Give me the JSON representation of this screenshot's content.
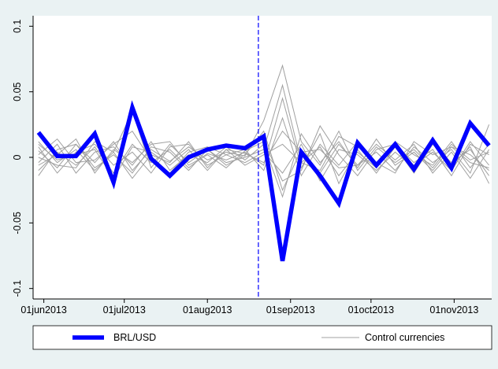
{
  "chart_data": {
    "type": "line",
    "x": [
      "2013-05-30",
      "2013-06-06",
      "2013-06-13",
      "2013-06-20",
      "2013-06-27",
      "2013-07-04",
      "2013-07-11",
      "2013-07-18",
      "2013-07-25",
      "2013-08-01",
      "2013-08-08",
      "2013-08-15",
      "2013-08-22",
      "2013-08-29",
      "2013-09-05",
      "2013-09-12",
      "2013-09-19",
      "2013-09-26",
      "2013-10-03",
      "2013-10-10",
      "2013-10-17",
      "2013-10-24",
      "2013-10-31",
      "2013-11-07",
      "2013-11-14"
    ],
    "series": [
      {
        "name": "BRL/USD",
        "color": "#0000ff",
        "values": [
          0.019,
          0.001,
          0.001,
          0.018,
          -0.019,
          0.038,
          -0.001,
          -0.014,
          0.0,
          0.006,
          0.009,
          0.007,
          0.016,
          -0.079,
          0.004,
          -0.014,
          -0.035,
          0.011,
          -0.006,
          0.01,
          -0.009,
          0.013,
          -0.008,
          0.026,
          0.009
        ]
      },
      {
        "name": "Control currencies",
        "color": "#a0a0a0",
        "values": [
          [
            0.005,
            -0.008,
            0.01,
            -0.004,
            0.012,
            -0.01,
            0.006,
            -0.003,
            0.008,
            -0.002,
            0.004,
            0.001,
            0.028,
            0.07,
            0.012,
            -0.006,
            0.02,
            -0.01,
            0.008,
            -0.004,
            0.006,
            -0.008,
            0.01,
            -0.002,
            0.004
          ],
          [
            -0.01,
            0.004,
            -0.006,
            0.008,
            -0.012,
            0.01,
            -0.004,
            0.006,
            -0.008,
            0.003,
            -0.002,
            0.004,
            -0.006,
            0.045,
            -0.008,
            0.018,
            -0.02,
            0.006,
            -0.012,
            0.008,
            -0.006,
            0.004,
            -0.01,
            0.012,
            -0.006
          ],
          [
            0.012,
            -0.004,
            0.006,
            -0.01,
            0.004,
            0.035,
            -0.008,
            0.01,
            -0.004,
            0.006,
            -0.006,
            0.002,
            0.02,
            -0.025,
            0.006,
            -0.012,
            0.01,
            -0.006,
            0.004,
            -0.01,
            0.008,
            -0.004,
            0.006,
            -0.012,
            0.025
          ],
          [
            -0.004,
            0.01,
            -0.012,
            0.004,
            0.008,
            -0.006,
            0.012,
            -0.01,
            0.002,
            -0.004,
            0.008,
            -0.002,
            0.01,
            -0.03,
            0.018,
            -0.004,
            0.012,
            -0.008,
            0.014,
            -0.006,
            0.004,
            -0.01,
            0.008,
            0.002,
            -0.01
          ],
          [
            0.008,
            -0.012,
            0.004,
            0.01,
            -0.006,
            0.004,
            -0.012,
            0.008,
            0.01,
            -0.006,
            0.002,
            0.006,
            -0.01,
            0.03,
            -0.014,
            0.01,
            -0.006,
            0.012,
            -0.004,
            0.008,
            -0.012,
            0.01,
            -0.004,
            0.006,
            -0.014
          ],
          [
            -0.014,
            0.006,
            0.01,
            -0.008,
            0.002,
            -0.012,
            0.008,
            0.004,
            -0.01,
            0.006,
            -0.004,
            0.0,
            0.006,
            0.055,
            -0.004,
            0.008,
            -0.014,
            0.004,
            -0.008,
            0.012,
            0.002,
            -0.006,
            0.012,
            -0.008,
            0.01
          ],
          [
            0.002,
            0.014,
            -0.004,
            -0.002,
            0.01,
            0.02,
            -0.002,
            -0.012,
            0.004,
            0.008,
            0.002,
            -0.004,
            0.004,
            -0.012,
            0.01,
            -0.018,
            0.006,
            0.002,
            -0.01,
            0.004,
            -0.008,
            0.012,
            -0.006,
            0.008,
            -0.02
          ],
          [
            0.01,
            -0.002,
            0.002,
            0.006,
            -0.016,
            0.008,
            0.004,
            -0.006,
            0.006,
            -0.01,
            0.006,
            0.003,
            -0.004,
            0.02,
            0.004,
            0.006,
            -0.008,
            -0.006,
            0.01,
            -0.002,
            0.01,
            -0.012,
            0.004,
            -0.016,
            0.006
          ],
          [
            -0.006,
            0.002,
            0.014,
            -0.012,
            0.006,
            -0.004,
            0.01,
            0.012,
            -0.006,
            0.002,
            -0.008,
            0.005,
            0.012,
            -0.018,
            -0.01,
            0.024,
            0.002,
            -0.014,
            0.006,
            0.01,
            -0.004,
            0.006,
            -0.014,
            0.01,
            0.002
          ],
          [
            0.0,
            -0.006,
            -0.008,
            0.012,
            0.004,
            -0.016,
            0.002,
            -0.004,
            0.012,
            -0.008,
            0.006,
            -0.006,
            0.002,
            0.01,
            -0.004,
            -0.01,
            0.016,
            0.008,
            -0.004,
            -0.012,
            0.012,
            0.002,
            0.008,
            -0.004,
            -0.008
          ]
        ]
      }
    ],
    "xlim": [
      "2013-05-28",
      "2013-11-15"
    ],
    "xticks": [
      {
        "value": "2013-06-01",
        "label": "01jun2013"
      },
      {
        "value": "2013-07-01",
        "label": "01jul2013"
      },
      {
        "value": "2013-08-01",
        "label": "01aug2013"
      },
      {
        "value": "2013-09-01",
        "label": "01sep2013"
      },
      {
        "value": "2013-10-01",
        "label": "01oct2013"
      },
      {
        "value": "2013-11-01",
        "label": "01nov2013"
      }
    ],
    "ylim": [
      -0.108,
      0.108
    ],
    "yticks": [
      -0.1,
      -0.05,
      0,
      0.05,
      0.1
    ],
    "vline": "2013-08-20",
    "vline_color": "#0000ff",
    "grid": false,
    "legend": "bottom"
  }
}
